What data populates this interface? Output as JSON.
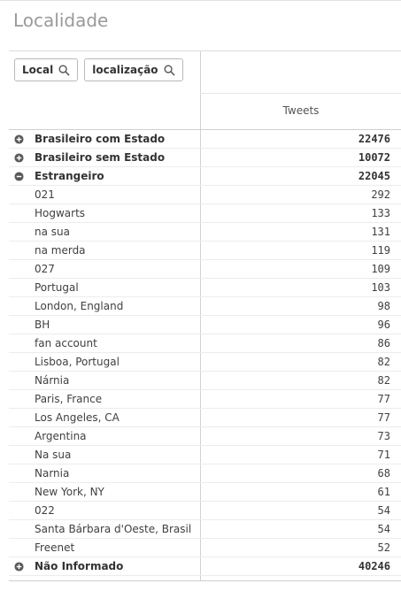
{
  "title": "Localidade",
  "filters": [
    {
      "label": "Local",
      "icon": "search-icon"
    },
    {
      "label": "localização",
      "icon": "search-icon"
    }
  ],
  "column": {
    "header": "Tweets"
  },
  "rows": [
    {
      "label": "Brasileiro com Estado",
      "value": "22476",
      "bold": true,
      "icon": "expand-icon"
    },
    {
      "label": "Brasileiro sem Estado",
      "value": "10072",
      "bold": true,
      "icon": "expand-icon"
    },
    {
      "label": "Estrangeiro",
      "value": "22045",
      "bold": true,
      "icon": "collapse-icon"
    },
    {
      "label": "021",
      "value": "292"
    },
    {
      "label": "Hogwarts",
      "value": "133"
    },
    {
      "label": "na sua",
      "value": "131"
    },
    {
      "label": "na merda",
      "value": "119"
    },
    {
      "label": "027",
      "value": "109"
    },
    {
      "label": "Portugal",
      "value": "103"
    },
    {
      "label": "London, England",
      "value": "98"
    },
    {
      "label": "BH",
      "value": "96"
    },
    {
      "label": "fan account",
      "value": "86"
    },
    {
      "label": "Lisboa, Portugal",
      "value": "82"
    },
    {
      "label": "Nárnia",
      "value": "82"
    },
    {
      "label": "Paris, France",
      "value": "77"
    },
    {
      "label": "Los Angeles, CA",
      "value": "77"
    },
    {
      "label": "Argentina",
      "value": "73"
    },
    {
      "label": "Na sua",
      "value": "71"
    },
    {
      "label": "Narnia",
      "value": "68"
    },
    {
      "label": "New York, NY",
      "value": "61"
    },
    {
      "label": "022",
      "value": "54"
    },
    {
      "label": "Santa Bárbara d'Oeste, Brasil",
      "value": "54"
    },
    {
      "label": "Freenet",
      "value": "52"
    },
    {
      "label": "Não Informado",
      "value": "40246",
      "bold": true,
      "icon": "expand-icon"
    }
  ]
}
